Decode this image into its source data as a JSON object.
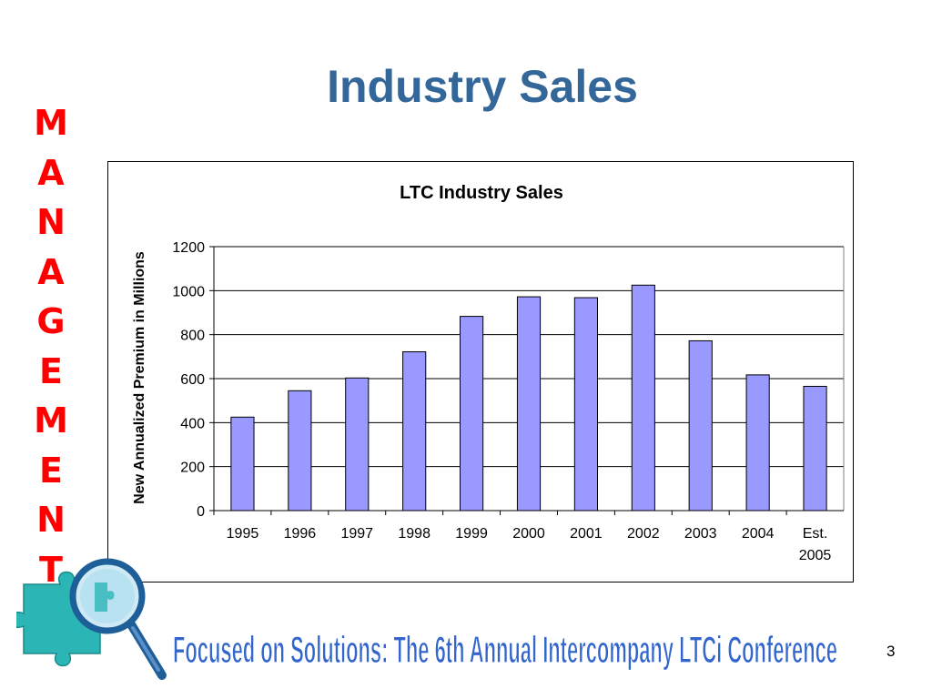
{
  "slide": {
    "title": "Industry Sales",
    "side_letters": [
      "M",
      "A",
      "N",
      "A",
      "G",
      "E",
      "M",
      "E",
      "N",
      "T"
    ],
    "banner_text": "Focused on Solutions:  The 6th Annual Intercompany LTCi Conference",
    "page_number": "3"
  },
  "colors": {
    "title": "#336699",
    "side_word": "#ff0000",
    "bar_fill": "#9999ff",
    "banner_fill": "#3366cc"
  },
  "chart_data": {
    "type": "bar",
    "title": "LTC Industry Sales",
    "ylabel": "New Annualized Premium in Millions",
    "xlabel": "",
    "categories": [
      "1995",
      "1996",
      "1997",
      "1998",
      "1999",
      "2000",
      "2001",
      "2002",
      "2003",
      "2004",
      "Est. 2005"
    ],
    "values": [
      425,
      545,
      603,
      722,
      883,
      972,
      968,
      1025,
      772,
      617,
      565
    ],
    "ylim": [
      0,
      1200
    ],
    "yticks": [
      0,
      200,
      400,
      600,
      800,
      1000,
      1200
    ],
    "grid": true,
    "legend": "none"
  }
}
